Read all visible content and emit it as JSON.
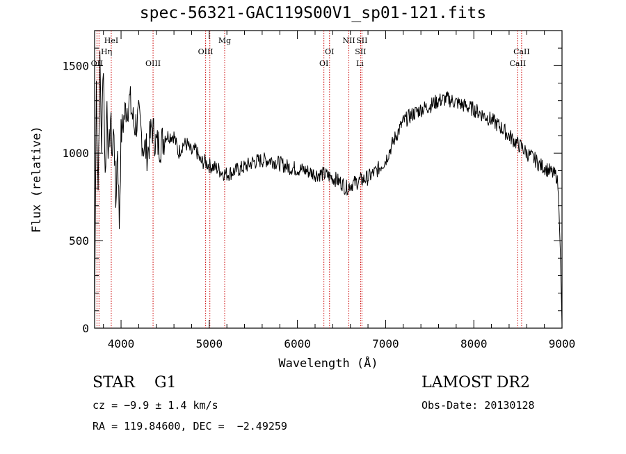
{
  "chart_data": {
    "type": "line",
    "title": "spec-56321-GAC119S00V1_sp01-121.fits",
    "xlabel": "Wavelength (Å)",
    "ylabel": "Flux (relative)",
    "xlim": [
      3700,
      9000
    ],
    "ylim": [
      0,
      1700
    ],
    "x_ticks": [
      4000,
      5000,
      6000,
      7000,
      8000,
      9000
    ],
    "x_tick_labels": [
      "4000",
      "5000",
      "6000",
      "7000",
      "8000",
      "9000"
    ],
    "y_ticks": [
      0,
      500,
      1000,
      1500
    ],
    "y_tick_labels": [
      "0",
      "500",
      "1000",
      "1500"
    ],
    "grid": false,
    "series": [
      {
        "color": "#000000",
        "x": [
          3700,
          3720,
          3740,
          3760,
          3780,
          3800,
          3820,
          3840,
          3860,
          3880,
          3900,
          3920,
          3940,
          3960,
          3980,
          4000,
          4050,
          4100,
          4150,
          4200,
          4250,
          4300,
          4350,
          4400,
          4450,
          4500,
          4550,
          4600,
          4650,
          4700,
          4750,
          4800,
          4850,
          4900,
          4950,
          5000,
          5050,
          5100,
          5150,
          5200,
          5300,
          5400,
          5500,
          5600,
          5700,
          5800,
          5900,
          6000,
          6100,
          6200,
          6300,
          6400,
          6500,
          6550,
          6600,
          6700,
          6800,
          6900,
          7000,
          7100,
          7200,
          7300,
          7400,
          7500,
          7600,
          7700,
          7800,
          7900,
          8000,
          8100,
          8200,
          8300,
          8400,
          8500,
          8550,
          8600,
          8650,
          8700,
          8750,
          8800,
          8850,
          8900,
          8940,
          8960,
          8980,
          9000
        ],
        "y": [
          50,
          1400,
          800,
          1500,
          1050,
          1550,
          850,
          1300,
          950,
          1200,
          1000,
          1150,
          700,
          1050,
          600,
          1100,
          1250,
          1300,
          1150,
          1200,
          1050,
          1000,
          1150,
          1050,
          1050,
          1100,
          1100,
          1100,
          1000,
          1050,
          1050,
          1000,
          1020,
          950,
          950,
          930,
          920,
          910,
          890,
          880,
          900,
          920,
          950,
          960,
          960,
          940,
          920,
          910,
          900,
          880,
          880,
          860,
          830,
          800,
          820,
          840,
          860,
          900,
          960,
          1080,
          1180,
          1220,
          1250,
          1270,
          1300,
          1310,
          1290,
          1270,
          1250,
          1220,
          1190,
          1150,
          1100,
          1050,
          1030,
          1000,
          980,
          960,
          930,
          920,
          900,
          880,
          870,
          760,
          450,
          20
        ]
      }
    ],
    "lines": {
      "positions": [
        3727,
        3750,
        3889,
        4363,
        4959,
        5007,
        5175,
        6300,
        6364,
        6583,
        6716,
        6731,
        8498,
        8542
      ],
      "labels": [
        {
          "text": "OII",
          "x": 3727,
          "row": 3
        },
        {
          "text": "HeI",
          "x": 3889,
          "row": 1
        },
        {
          "text": "Hη",
          "x": 3835,
          "row": 2
        },
        {
          "text": "OIII",
          "x": 4363,
          "row": 3
        },
        {
          "text": "OIII",
          "x": 4959,
          "row": 2
        },
        {
          "text": "Mg",
          "x": 5175,
          "row": 1
        },
        {
          "text": "OI",
          "x": 6364,
          "row": 2
        },
        {
          "text": "OI",
          "x": 6300,
          "row": 3
        },
        {
          "text": "NII",
          "x": 6583,
          "row": 1
        },
        {
          "text": "SII",
          "x": 6731,
          "row": 1
        },
        {
          "text": "SII",
          "x": 6716,
          "row": 2
        },
        {
          "text": "Li",
          "x": 6708,
          "row": 3
        },
        {
          "text": "CaII",
          "x": 8542,
          "row": 2
        },
        {
          "text": "CaII",
          "x": 8498,
          "row": 3
        }
      ],
      "color": "#cc0000"
    }
  },
  "info": {
    "object_class": "STAR    G1",
    "survey": "LAMOST DR2",
    "redshift": "cz = −9.9 ± 1.4 km/s",
    "obs_date": "Obs-Date: 20130128",
    "coords": "RA = 119.84600, DEC =  −2.49259"
  }
}
